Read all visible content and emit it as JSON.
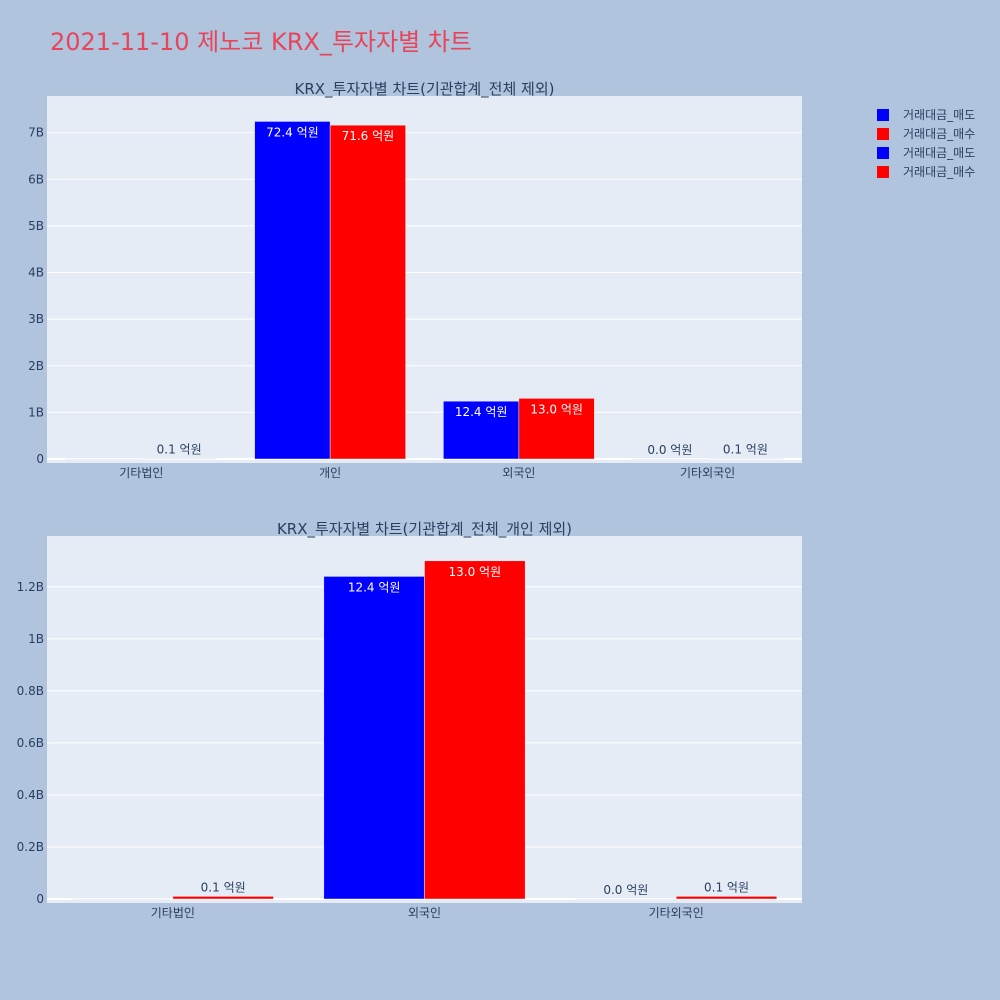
{
  "page_title": "2021-11-10 제노코 KRX_투자자별 차트",
  "legend": [
    {
      "label": "거래대금_매도",
      "color": "#0000ff"
    },
    {
      "label": "거래대금_매수",
      "color": "#ff0000"
    },
    {
      "label": "거래대금_매도",
      "color": "#0000ff"
    },
    {
      "label": "거래대금_매수",
      "color": "#ff0000"
    }
  ],
  "chart_data": [
    {
      "type": "bar",
      "title": "KRX_투자자별 차트(기관합계_전체 제외)",
      "categories": [
        "기타법인",
        "개인",
        "외국인",
        "기타외국인"
      ],
      "ylim": [
        0,
        7.7
      ],
      "yticks": [
        {
          "value": 0,
          "label": "0"
        },
        {
          "value": 1,
          "label": "1B"
        },
        {
          "value": 2,
          "label": "2B"
        },
        {
          "value": 3,
          "label": "3B"
        },
        {
          "value": 4,
          "label": "4B"
        },
        {
          "value": 5,
          "label": "5B"
        },
        {
          "value": 6,
          "label": "6B"
        },
        {
          "value": 7,
          "label": "7B"
        }
      ],
      "grid": true,
      "series": [
        {
          "name": "거래대금_매도",
          "color": "#0000ff",
          "values": [
            0,
            7.24,
            1.24,
            0.0
          ],
          "labels": [
            "",
            "72.4 억원",
            "12.4 억원",
            "0.0 억원"
          ]
        },
        {
          "name": "거래대금_매수",
          "color": "#ff0000",
          "values": [
            0.01,
            7.16,
            1.3,
            0.01
          ],
          "labels": [
            "0.1 억원",
            "71.6 억원",
            "13.0 억원",
            "0.1 억원"
          ]
        }
      ]
    },
    {
      "type": "bar",
      "title": "KRX_투자자별 차트(기관합계_전체_개인 제외)",
      "categories": [
        "기타법인",
        "외국인",
        "기타외국인"
      ],
      "ylim": [
        0,
        1.38
      ],
      "yticks": [
        {
          "value": 0,
          "label": "0"
        },
        {
          "value": 0.2,
          "label": "0.2B"
        },
        {
          "value": 0.4,
          "label": "0.4B"
        },
        {
          "value": 0.6,
          "label": "0.6B"
        },
        {
          "value": 0.8,
          "label": "0.8B"
        },
        {
          "value": 1.0,
          "label": "1B"
        },
        {
          "value": 1.2,
          "label": "1.2B"
        }
      ],
      "grid": true,
      "series": [
        {
          "name": "거래대금_매도",
          "color": "#0000ff",
          "values": [
            0,
            1.24,
            0.0
          ],
          "labels": [
            "",
            "12.4 억원",
            "0.0 억원"
          ]
        },
        {
          "name": "거래대금_매수",
          "color": "#ff0000",
          "values": [
            0.01,
            1.3,
            0.01
          ],
          "labels": [
            "0.1 억원",
            "13.0 억원",
            "0.1 억원"
          ]
        }
      ]
    }
  ]
}
